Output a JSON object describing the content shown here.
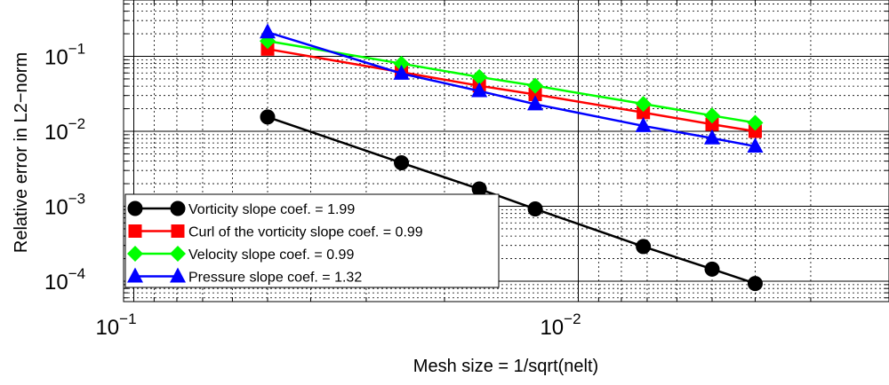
{
  "chart_data": {
    "type": "line",
    "xlabel": "Mesh size = 1/sqrt(nelt)",
    "ylabel": "Relative error in L2−norm",
    "xscale": "log",
    "yscale": "log",
    "x_direction": "reversed",
    "xlim": [
      0.1,
      0.0018
    ],
    "ylim": [
      5e-05,
      0.31
    ],
    "grid": true,
    "legend_position": "bottom-left",
    "x_ticks": [
      {
        "base": "10",
        "exp": "−1",
        "value": 0.1
      },
      {
        "base": "10",
        "exp": "−2",
        "value": 0.01
      }
    ],
    "y_ticks": [
      {
        "base": "10",
        "exp": "−1",
        "value": 0.1
      },
      {
        "base": "10",
        "exp": "−2",
        "value": 0.01
      },
      {
        "base": "10",
        "exp": "−3",
        "value": 0.001
      },
      {
        "base": "10",
        "exp": "−4",
        "value": 0.0001
      }
    ],
    "x": [
      0.05,
      0.025,
      0.0167,
      0.0125,
      0.00714,
      0.005,
      0.004
    ],
    "series": [
      {
        "name": "Vorticity slope coef. = 1.99",
        "color": "#000000",
        "marker": "circle",
        "values": [
          0.0155,
          0.0038,
          0.0017,
          0.00092,
          0.00029,
          0.000145,
          9.32e-05
        ]
      },
      {
        "name": "Curl of the vorticity slope coef. = 0.99",
        "color": "#ff0000",
        "marker": "square",
        "values": [
          0.125,
          0.0615,
          0.0405,
          0.031,
          0.0178,
          0.0124,
          0.01
        ]
      },
      {
        "name": "Velocity slope coef. = 0.99",
        "color": "#00ff00",
        "marker": "diamond",
        "values": [
          0.16,
          0.08,
          0.053,
          0.0405,
          0.0232,
          0.0162,
          0.013
        ]
      },
      {
        "name": "Pressure slope coef. = 1.32",
        "color": "#0000ff",
        "marker": "triangle",
        "values": [
          0.21,
          0.059,
          0.0345,
          0.023,
          0.0118,
          0.0081,
          0.0063
        ]
      }
    ]
  }
}
